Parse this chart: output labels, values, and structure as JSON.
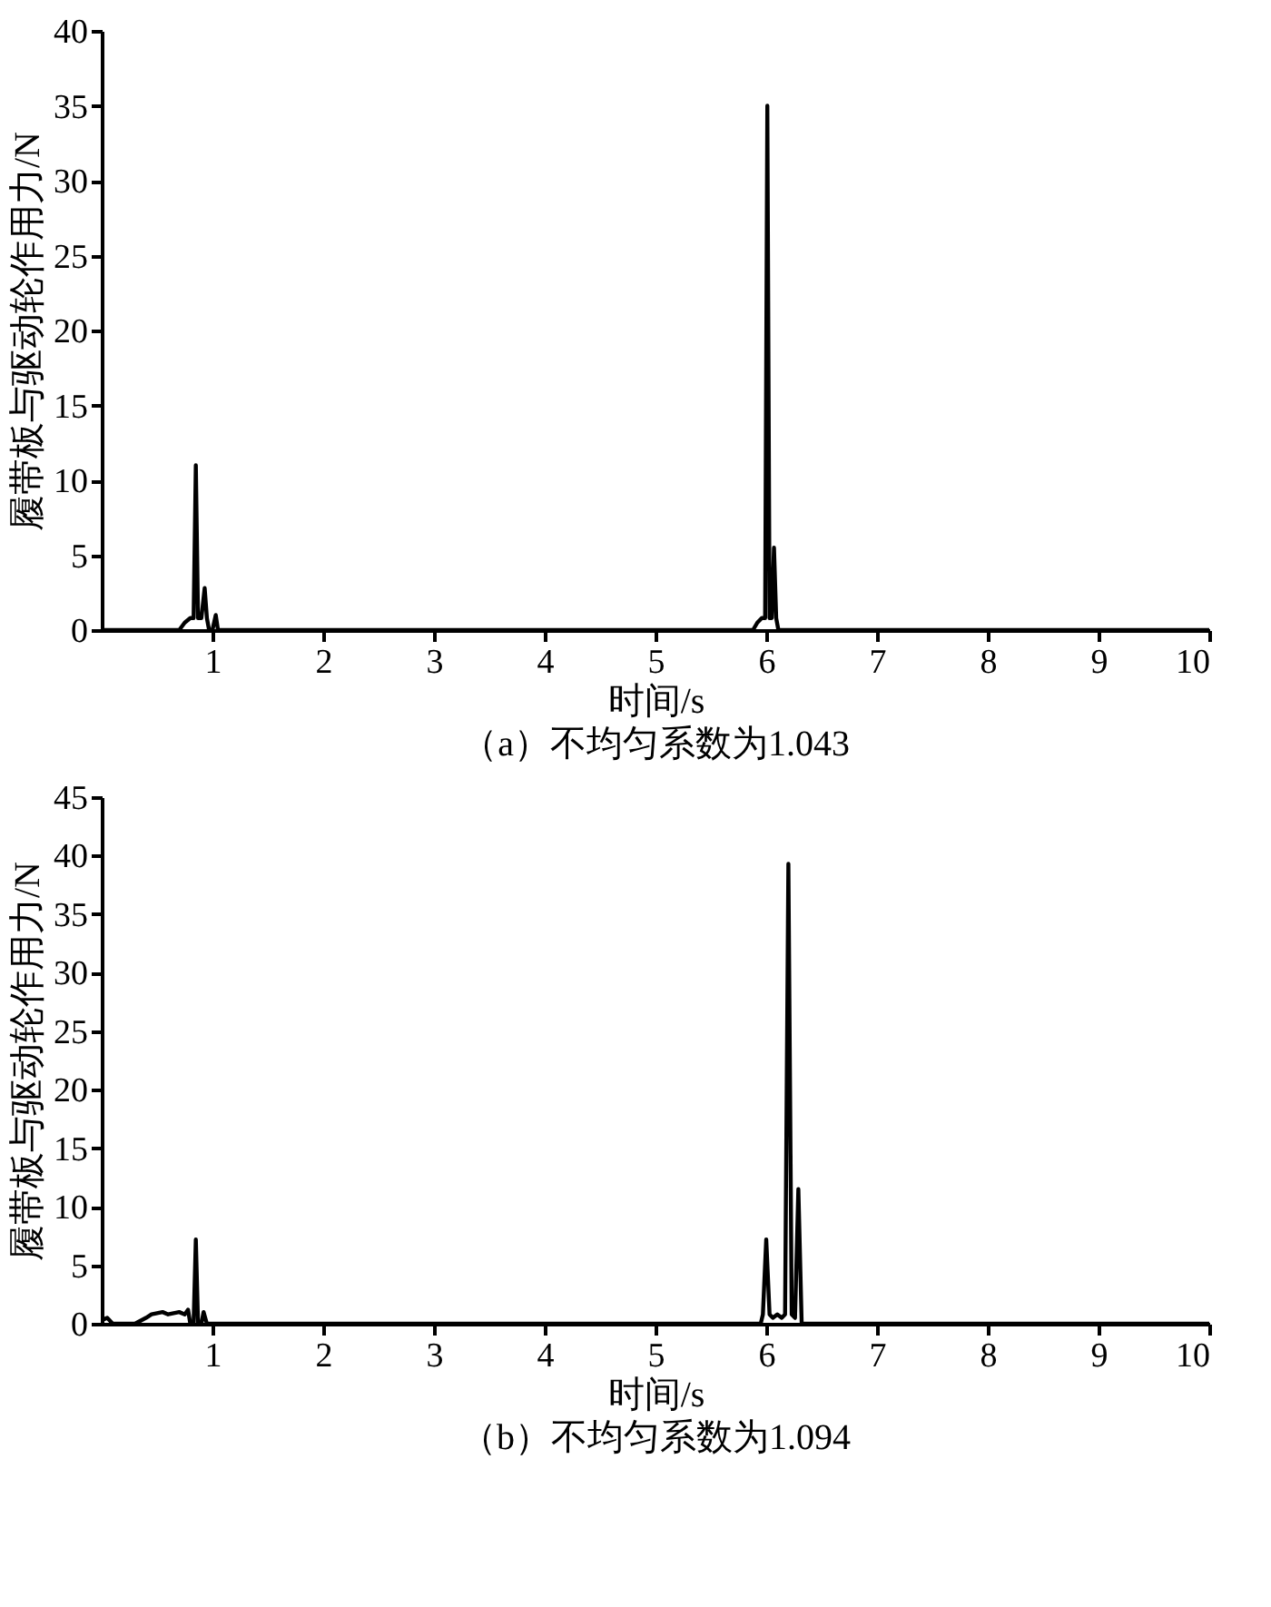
{
  "chart_data": [
    {
      "type": "line",
      "xlabel": "时间/s",
      "ylabel": "履带板与驱动轮作用力/N",
      "annotations": [
        "（a）不均匀系数为1.043"
      ],
      "xlim": [
        0,
        10
      ],
      "xticks": [
        1,
        2,
        3,
        4,
        5,
        6,
        7,
        8,
        9,
        10
      ],
      "ylim": [
        0,
        40
      ],
      "yticks": [
        0,
        5,
        10,
        15,
        20,
        25,
        30,
        35,
        40
      ],
      "grid": false,
      "line_style": "solid",
      "marker": "none",
      "series": [
        {
          "color": "#000000",
          "x": [
            0,
            0.6,
            0.7,
            0.75,
            0.8,
            0.83,
            0.85,
            0.87,
            0.9,
            0.93,
            0.95,
            0.97,
            1.0,
            1.03,
            1.05,
            1.1,
            5.8,
            5.88,
            5.92,
            5.96,
            5.99,
            6.01,
            6.03,
            6.05,
            6.07,
            6.09,
            6.11,
            6.15,
            6.2,
            10
          ],
          "values": [
            0,
            0,
            0,
            0.5,
            0.8,
            0.8,
            11,
            0.8,
            0.8,
            2.8,
            0.8,
            0,
            0,
            1,
            0,
            0,
            0,
            0,
            0.5,
            0.8,
            0.8,
            35,
            0.8,
            0.8,
            5.5,
            0.8,
            0,
            0,
            0,
            0
          ]
        }
      ]
    },
    {
      "type": "line",
      "xlabel": "时间/s",
      "ylabel": "履带板与驱动轮作用力/N",
      "annotations": [
        "（b）不均匀系数为1.094"
      ],
      "xlim": [
        0,
        10
      ],
      "xticks": [
        1,
        2,
        3,
        4,
        5,
        6,
        7,
        8,
        9,
        10
      ],
      "ylim": [
        0,
        45
      ],
      "yticks": [
        0,
        5,
        10,
        15,
        20,
        25,
        30,
        35,
        40,
        45
      ],
      "grid": false,
      "line_style": "solid",
      "marker": "none",
      "series": [
        {
          "color": "#000000",
          "x": [
            0,
            0.05,
            0.1,
            0.3,
            0.4,
            0.45,
            0.55,
            0.6,
            0.7,
            0.75,
            0.78,
            0.8,
            0.83,
            0.85,
            0.87,
            0.9,
            0.92,
            0.95,
            0.97,
            1.0,
            5.9,
            5.95,
            5.97,
            6.0,
            6.03,
            6.06,
            6.1,
            6.14,
            6.17,
            6.2,
            6.23,
            6.26,
            6.29,
            6.32,
            6.35,
            6.4,
            10
          ],
          "values": [
            0.3,
            0.5,
            0,
            0,
            0.5,
            0.8,
            1,
            0.8,
            1,
            0.8,
            1.2,
            0,
            0,
            7.2,
            0,
            0,
            1,
            0,
            0,
            0,
            0,
            0,
            0.8,
            7.2,
            0.8,
            0.5,
            0.8,
            0.5,
            0.8,
            39.3,
            0.8,
            0.5,
            11.5,
            0,
            0,
            0,
            0
          ]
        }
      ]
    }
  ]
}
